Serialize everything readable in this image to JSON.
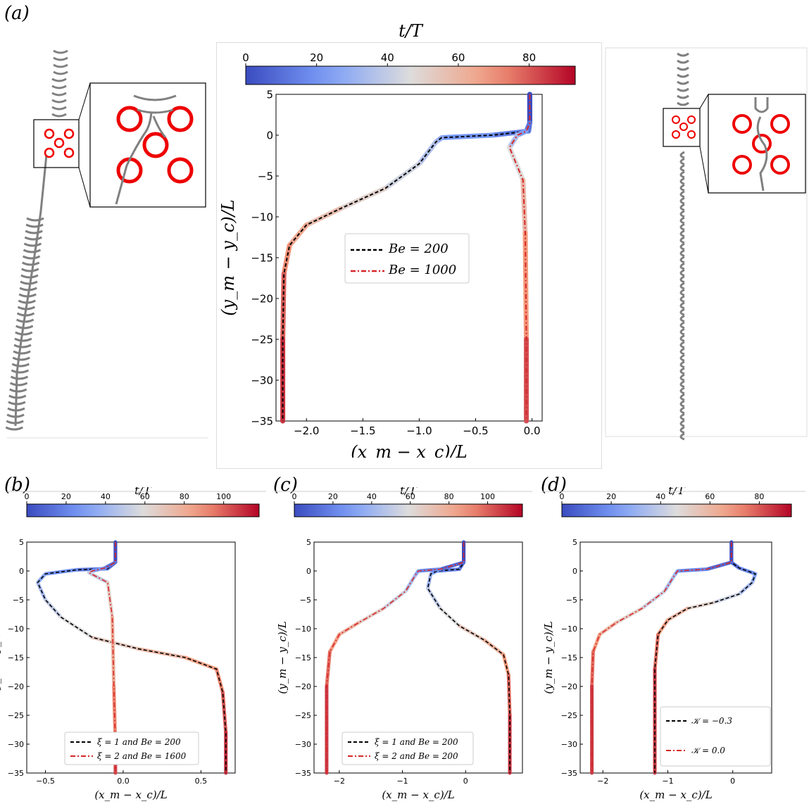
{
  "labels": {
    "a": "(a)",
    "b": "(b)",
    "c": "(c)",
    "d": "(d)"
  },
  "chart_data": [
    {
      "id": "a",
      "type": "line",
      "colorbar": {
        "label": "t/T",
        "ticks": [
          "0",
          "20",
          "40",
          "60",
          "80"
        ],
        "max": 93
      },
      "xlabel": "(x_m − x_c)/L",
      "ylabel": "(y_m − y_c)/L",
      "xlim": [
        -2.27,
        0.09
      ],
      "ylim": [
        -35,
        5
      ],
      "xticks": [
        -2.0,
        -1.5,
        -1.0,
        -0.5,
        0.0
      ],
      "xticklabels": [
        "−2.0",
        "−1.5",
        "−1.0",
        "−0.5",
        "0.0"
      ],
      "yticks": [
        5,
        0,
        -5,
        -10,
        -15,
        -20,
        -25,
        -30,
        -35
      ],
      "yticklabels": [
        "5",
        "0",
        "−5",
        "−10",
        "−15",
        "−20",
        "−25",
        "−30",
        "−35"
      ],
      "legend": {
        "position": "center",
        "entries": [
          "Be = 200",
          "Be = 1000"
        ]
      },
      "series": [
        {
          "name": "Be = 200",
          "style": "dashed",
          "color": "#000000",
          "tmax": 93,
          "x": [
            -0.02,
            -0.02,
            -0.03,
            -0.35,
            -0.8,
            -0.85,
            -1.0,
            -1.3,
            -1.7,
            -2.0,
            -2.15,
            -2.2,
            -2.21,
            -2.21
          ],
          "y": [
            5,
            1.5,
            0.5,
            0,
            -0.3,
            -0.8,
            -3.5,
            -6.5,
            -9.0,
            -11.0,
            -13.5,
            -17,
            -25,
            -35
          ]
        },
        {
          "name": "Be = 1000",
          "style": "dashdot",
          "color": "#d62728",
          "tmax": 93,
          "x": [
            -0.02,
            -0.02,
            -0.05,
            -0.13,
            -0.2,
            -0.08,
            -0.06,
            -0.05,
            -0.05
          ],
          "y": [
            5,
            1.5,
            0.5,
            0.0,
            -1.5,
            -5.5,
            -12,
            -25,
            -35
          ]
        }
      ]
    },
    {
      "id": "b",
      "type": "line",
      "colorbar": {
        "label": "t/T",
        "ticks": [
          "0",
          "20",
          "40",
          "60",
          "80",
          "100"
        ],
        "max": 118
      },
      "xlabel": "(x_m − x_c)/L",
      "ylabel": "(y_m − y_c)/L",
      "xlim": [
        -0.62,
        0.72
      ],
      "ylim": [
        -35,
        5
      ],
      "xticks": [
        -0.5,
        0.0,
        0.5
      ],
      "xticklabels": [
        "−0.5",
        "0.0",
        "0.5"
      ],
      "yticks": [
        5,
        0,
        -5,
        -10,
        -15,
        -20,
        -25,
        -30,
        -35
      ],
      "yticklabels": [
        "5",
        "0",
        "−5",
        "−10",
        "−15",
        "−20",
        "−25",
        "−30",
        "−35"
      ],
      "legend": {
        "position": "lower center",
        "entries": [
          "ξ = 1 and Be = 200",
          "ξ = 2 and Be = 1600"
        ]
      },
      "series": [
        {
          "name": "ξ = 1 and Be = 200",
          "style": "dashed",
          "color": "#000000",
          "tmax": 118,
          "x": [
            -0.05,
            -0.05,
            -0.1,
            -0.3,
            -0.5,
            -0.55,
            -0.5,
            -0.4,
            -0.2,
            0.1,
            0.4,
            0.6,
            0.64,
            0.66,
            0.66
          ],
          "y": [
            5,
            1.5,
            0.4,
            0.2,
            -0.5,
            -2.0,
            -5.0,
            -8.0,
            -11.5,
            -13.5,
            -15.0,
            -17.0,
            -21,
            -28,
            -35
          ]
        },
        {
          "name": "ξ = 2 and Be = 1600",
          "style": "dashdot",
          "color": "#d62728",
          "tmax": 118,
          "x": [
            -0.05,
            -0.05,
            -0.12,
            -0.2,
            -0.22,
            -0.1,
            -0.07,
            -0.06,
            -0.05,
            -0.05
          ],
          "y": [
            5,
            1.5,
            0.5,
            0,
            -0.3,
            -2,
            -8,
            -20,
            -30,
            -35
          ]
        }
      ]
    },
    {
      "id": "c",
      "type": "line",
      "colorbar": {
        "label": "t/T",
        "ticks": [
          "0",
          "20",
          "40",
          "60",
          "80",
          "100"
        ],
        "max": 118
      },
      "xlabel": "(x_m − x_c)/L",
      "ylabel": "(y_m − y_c)/L",
      "xlim": [
        -2.4,
        0.9
      ],
      "ylim": [
        -35,
        5
      ],
      "xticks": [
        -2,
        -1,
        0
      ],
      "xticklabels": [
        "−2",
        "−1",
        "0"
      ],
      "yticks": [
        5,
        0,
        -5,
        -10,
        -15,
        -20,
        -25,
        -30,
        -35
      ],
      "yticklabels": [
        "5",
        "0",
        "−5",
        "−10",
        "−15",
        "−20",
        "−25",
        "−30",
        "−35"
      ],
      "legend": {
        "position": "lower center",
        "entries": [
          "ξ = 1 and Be = 200",
          "ξ = 2 and Be = 200"
        ]
      },
      "series": [
        {
          "name": "ξ = 1 and Be = 200",
          "style": "dashed",
          "color": "#000000",
          "tmax": 118,
          "x": [
            -0.03,
            -0.03,
            -0.1,
            -0.45,
            -0.55,
            -0.6,
            -0.4,
            -0.1,
            0.3,
            0.6,
            0.68,
            0.7,
            0.7
          ],
          "y": [
            5,
            1.5,
            0.3,
            0,
            -0.5,
            -3.0,
            -6.5,
            -9.5,
            -12.0,
            -14.5,
            -18,
            -25,
            -35
          ]
        },
        {
          "name": "ξ = 2 and Be = 200",
          "style": "dashdot",
          "color": "#d62728",
          "tmax": 118,
          "x": [
            -0.03,
            -0.03,
            -0.4,
            -0.75,
            -0.8,
            -0.95,
            -1.3,
            -1.7,
            -2.0,
            -2.15,
            -2.2,
            -2.2
          ],
          "y": [
            5,
            1.5,
            0.3,
            0,
            -0.8,
            -3.5,
            -6.5,
            -9.0,
            -11.0,
            -14.0,
            -20,
            -35
          ]
        }
      ]
    },
    {
      "id": "d",
      "type": "line",
      "colorbar": {
        "label": "t/T",
        "ticks": [
          "0",
          "20",
          "40",
          "60",
          "80"
        ],
        "max": 93
      },
      "xlabel": "(x_m − x_c)/L",
      "ylabel": "(y_m − y_c)/L",
      "xlim": [
        -2.35,
        0.6
      ],
      "ylim": [
        -35,
        5
      ],
      "xticks": [
        -2,
        -1,
        0
      ],
      "xticklabels": [
        "−2",
        "−1",
        "0"
      ],
      "yticks": [
        5,
        0,
        -5,
        -10,
        -15,
        -20,
        -25,
        -30,
        -35
      ],
      "yticklabels": [
        "5",
        "0",
        "−5",
        "−10",
        "−15",
        "−20",
        "−25",
        "−30",
        "−35"
      ],
      "legend": {
        "position": "lower right",
        "entries": [
          "𝒦 = −0.3",
          "𝒦 = 0.0"
        ]
      },
      "series": [
        {
          "name": "𝒦 = −0.3",
          "style": "dashed",
          "color": "#000000",
          "tmax": 93,
          "x": [
            -0.02,
            -0.02,
            0.1,
            0.35,
            0.3,
            0.1,
            -0.3,
            -0.7,
            -1.0,
            -1.15,
            -1.2,
            -1.2
          ],
          "y": [
            5,
            1.5,
            0.5,
            -0.5,
            -2.0,
            -4.0,
            -5.5,
            -6.5,
            -8.5,
            -11.0,
            -17,
            -35
          ]
        },
        {
          "name": "𝒦 = 0.0",
          "style": "dashdot",
          "color": "#d62728",
          "tmax": 93,
          "x": [
            -0.02,
            -0.02,
            -0.4,
            -0.85,
            -0.9,
            -1.05,
            -1.4,
            -1.8,
            -2.05,
            -2.15,
            -2.17,
            -2.17
          ],
          "y": [
            5,
            1.5,
            0.3,
            0,
            -0.8,
            -3.5,
            -6.5,
            -9.0,
            -11.0,
            -14.0,
            -20,
            -35
          ]
        }
      ]
    }
  ]
}
